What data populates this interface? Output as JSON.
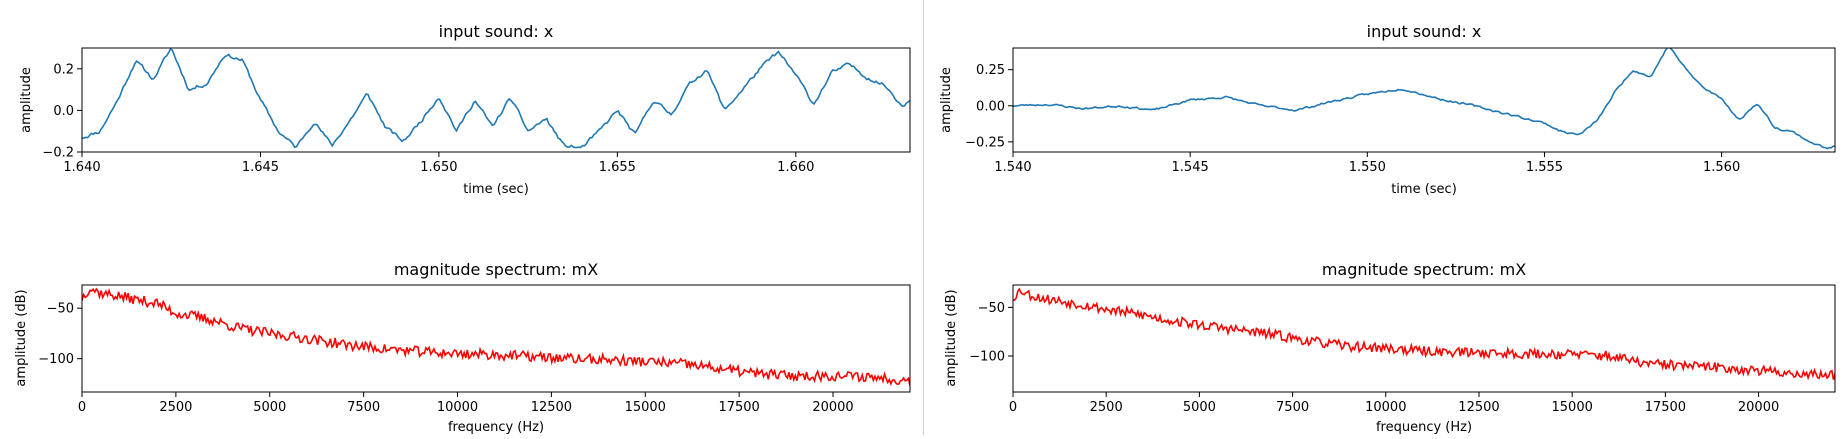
{
  "colors": {
    "waveform": "#1f77b4",
    "spectrum": "#ff0000",
    "divider": "#d0d0d0"
  },
  "chart_data": [
    {
      "type": "line",
      "title": "input sound: x",
      "xlabel": "time (sec)",
      "ylabel": "amplitude",
      "xlim": [
        1.64,
        1.6632
      ],
      "ylim": [
        -0.2,
        0.3
      ],
      "xticks": [
        1.64,
        1.645,
        1.65,
        1.655,
        1.66
      ],
      "xtick_labels": [
        "1.640",
        "1.645",
        "1.650",
        "1.655",
        "1.660"
      ],
      "yticks": [
        -0.2,
        0.0,
        0.2
      ],
      "ytick_labels": [
        "−0.2",
        "0.0",
        "0.2"
      ],
      "series": [
        {
          "color": "#1f77b4",
          "points": [
            [
              1.64,
              -0.13
            ],
            [
              1.6405,
              -0.1
            ],
            [
              1.641,
              0.05
            ],
            [
              1.6415,
              0.24
            ],
            [
              1.642,
              0.15
            ],
            [
              1.6425,
              0.3
            ],
            [
              1.643,
              0.1
            ],
            [
              1.6435,
              0.13
            ],
            [
              1.644,
              0.27
            ],
            [
              1.6445,
              0.24
            ],
            [
              1.645,
              0.05
            ],
            [
              1.6455,
              -0.1
            ],
            [
              1.646,
              -0.18
            ],
            [
              1.6465,
              -0.05
            ],
            [
              1.647,
              -0.17
            ],
            [
              1.6475,
              -0.05
            ],
            [
              1.648,
              0.08
            ],
            [
              1.6485,
              -0.08
            ],
            [
              1.649,
              -0.15
            ],
            [
              1.6495,
              -0.05
            ],
            [
              1.65,
              0.07
            ],
            [
              1.6505,
              -0.1
            ],
            [
              1.651,
              0.05
            ],
            [
              1.6515,
              -0.08
            ],
            [
              1.652,
              0.06
            ],
            [
              1.6525,
              -0.1
            ],
            [
              1.653,
              -0.04
            ],
            [
              1.6535,
              -0.17
            ],
            [
              1.654,
              -0.18
            ],
            [
              1.6545,
              -0.1
            ],
            [
              1.655,
              0.0
            ],
            [
              1.6555,
              -0.12
            ],
            [
              1.656,
              0.05
            ],
            [
              1.6565,
              -0.02
            ],
            [
              1.657,
              0.12
            ],
            [
              1.6575,
              0.2
            ],
            [
              1.658,
              0.0
            ],
            [
              1.6585,
              0.1
            ],
            [
              1.659,
              0.2
            ],
            [
              1.6595,
              0.28
            ],
            [
              1.66,
              0.17
            ],
            [
              1.6605,
              0.03
            ],
            [
              1.661,
              0.18
            ],
            [
              1.6615,
              0.22
            ],
            [
              1.662,
              0.16
            ],
            [
              1.6625,
              0.12
            ],
            [
              1.663,
              0.02
            ],
            [
              1.6632,
              0.06
            ]
          ]
        }
      ]
    },
    {
      "type": "line",
      "title": "input sound: x",
      "xlabel": "time (sec)",
      "ylabel": "amplitude",
      "xlim": [
        1.54,
        1.5632
      ],
      "ylim": [
        -0.32,
        0.4
      ],
      "xticks": [
        1.54,
        1.545,
        1.55,
        1.555,
        1.56
      ],
      "xtick_labels": [
        "1.540",
        "1.545",
        "1.550",
        "1.555",
        "1.560"
      ],
      "yticks": [
        -0.25,
        0.0,
        0.25
      ],
      "ytick_labels": [
        "−0.25",
        "0.00",
        "0.25"
      ],
      "series": [
        {
          "color": "#1f77b4",
          "points": [
            [
              1.54,
              0.0
            ],
            [
              1.541,
              0.01
            ],
            [
              1.542,
              -0.02
            ],
            [
              1.543,
              0.0
            ],
            [
              1.544,
              -0.03
            ],
            [
              1.545,
              0.04
            ],
            [
              1.546,
              0.06
            ],
            [
              1.547,
              0.0
            ],
            [
              1.548,
              -0.03
            ],
            [
              1.549,
              0.03
            ],
            [
              1.55,
              0.08
            ],
            [
              1.551,
              0.12
            ],
            [
              1.552,
              0.05
            ],
            [
              1.553,
              0.0
            ],
            [
              1.554,
              -0.06
            ],
            [
              1.555,
              -0.12
            ],
            [
              1.5555,
              -0.18
            ],
            [
              1.556,
              -0.2
            ],
            [
              1.5565,
              -0.1
            ],
            [
              1.557,
              0.1
            ],
            [
              1.5575,
              0.25
            ],
            [
              1.558,
              0.2
            ],
            [
              1.5585,
              0.42
            ],
            [
              1.559,
              0.25
            ],
            [
              1.5595,
              0.12
            ],
            [
              1.56,
              0.05
            ],
            [
              1.5605,
              -0.1
            ],
            [
              1.561,
              0.02
            ],
            [
              1.5615,
              -0.15
            ],
            [
              1.562,
              -0.18
            ],
            [
              1.5625,
              -0.25
            ],
            [
              1.563,
              -0.3
            ],
            [
              1.5632,
              -0.28
            ]
          ]
        }
      ]
    },
    {
      "type": "line",
      "title": "magnitude spectrum: mX",
      "xlabel": "frequency (Hz)",
      "ylabel": "amplitude (dB)",
      "xlim": [
        0,
        22050
      ],
      "ylim": [
        -133,
        -27
      ],
      "xticks": [
        0,
        2500,
        5000,
        7500,
        10000,
        12500,
        15000,
        17500,
        20000
      ],
      "xtick_labels": [
        "0",
        "2500",
        "5000",
        "7500",
        "10000",
        "12500",
        "15000",
        "17500",
        "20000"
      ],
      "yticks": [
        -50,
        -100
      ],
      "ytick_labels": [
        "−50",
        "−100"
      ],
      "series": [
        {
          "color": "#ff0000",
          "points": [
            [
              0,
              -40
            ],
            [
              200,
              -30
            ],
            [
              500,
              -35
            ],
            [
              1000,
              -38
            ],
            [
              1500,
              -42
            ],
            [
              2000,
              -45
            ],
            [
              2500,
              -55
            ],
            [
              3000,
              -58
            ],
            [
              3500,
              -62
            ],
            [
              4000,
              -68
            ],
            [
              4500,
              -72
            ],
            [
              5000,
              -75
            ],
            [
              6000,
              -80
            ],
            [
              7000,
              -86
            ],
            [
              8000,
              -90
            ],
            [
              9000,
              -93
            ],
            [
              10000,
              -95
            ],
            [
              11000,
              -96
            ],
            [
              12000,
              -98
            ],
            [
              13000,
              -100
            ],
            [
              14000,
              -101
            ],
            [
              15000,
              -103
            ],
            [
              16000,
              -105
            ],
            [
              17000,
              -110
            ],
            [
              18000,
              -115
            ],
            [
              19000,
              -117
            ],
            [
              20000,
              -117
            ],
            [
              21000,
              -118
            ],
            [
              22050,
              -122
            ]
          ]
        }
      ]
    },
    {
      "type": "line",
      "title": "magnitude spectrum: mX",
      "xlabel": "frequency (Hz)",
      "ylabel": "amplitude (dB)",
      "xlim": [
        0,
        22050
      ],
      "ylim": [
        -137,
        -27
      ],
      "xticks": [
        0,
        2500,
        5000,
        7500,
        10000,
        12500,
        15000,
        17500,
        20000
      ],
      "xtick_labels": [
        "0",
        "2500",
        "5000",
        "7500",
        "10000",
        "12500",
        "15000",
        "17500",
        "20000"
      ],
      "yticks": [
        -50,
        -100
      ],
      "ytick_labels": [
        "−50",
        "−100"
      ],
      "series": [
        {
          "color": "#ff0000",
          "points": [
            [
              0,
              -40
            ],
            [
              200,
              -32
            ],
            [
              500,
              -38
            ],
            [
              1000,
              -42
            ],
            [
              1500,
              -45
            ],
            [
              2000,
              -48
            ],
            [
              2500,
              -52
            ],
            [
              3000,
              -55
            ],
            [
              3500,
              -58
            ],
            [
              4000,
              -62
            ],
            [
              4500,
              -65
            ],
            [
              5000,
              -68
            ],
            [
              6000,
              -73
            ],
            [
              7000,
              -78
            ],
            [
              8000,
              -85
            ],
            [
              9000,
              -90
            ],
            [
              10000,
              -92
            ],
            [
              11000,
              -95
            ],
            [
              12000,
              -96
            ],
            [
              13000,
              -97
            ],
            [
              14000,
              -98
            ],
            [
              15000,
              -98
            ],
            [
              16000,
              -100
            ],
            [
              17000,
              -108
            ],
            [
              18000,
              -110
            ],
            [
              19000,
              -112
            ],
            [
              20000,
              -115
            ],
            [
              21000,
              -118
            ],
            [
              22050,
              -120
            ]
          ]
        }
      ]
    }
  ]
}
